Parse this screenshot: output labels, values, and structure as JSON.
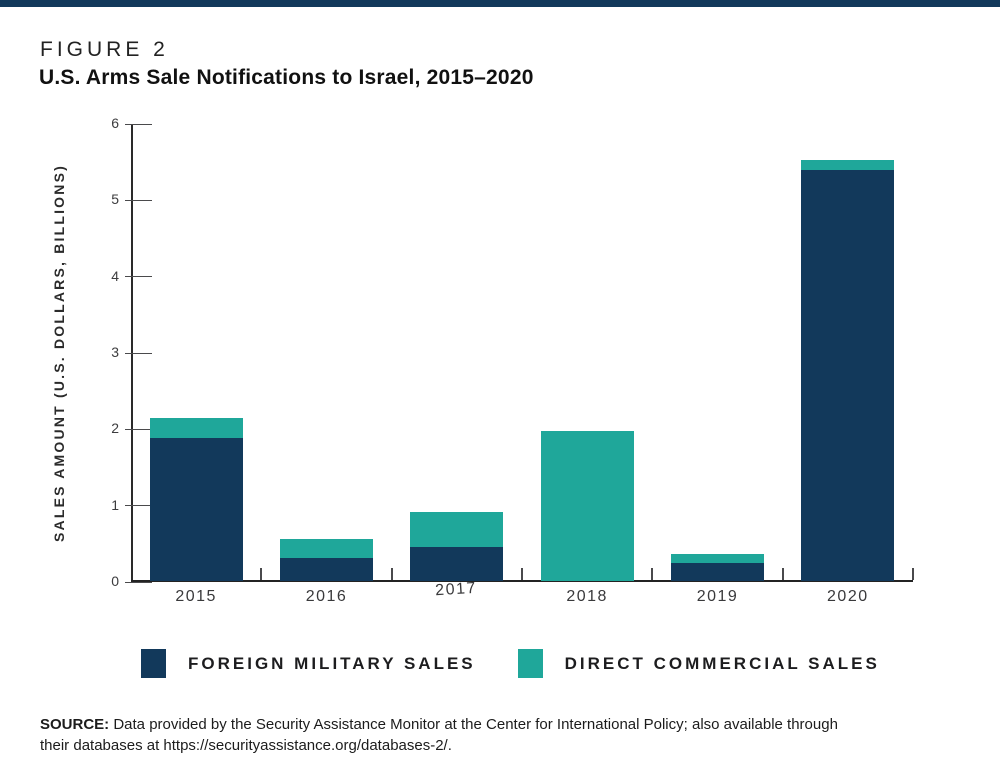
{
  "figure": {
    "label": "FIGURE 2",
    "title": "U.S. Arms Sale Notifications to Israel, 2015–2020"
  },
  "chart_data": {
    "type": "bar",
    "stacked": true,
    "title": "U.S. Arms Sale Notifications to Israel, 2015–2020",
    "categories": [
      "2015",
      "2016",
      "2017",
      "2018",
      "2019",
      "2020"
    ],
    "series": [
      {
        "name": "FOREIGN MILITARY SALES",
        "color": "#12395b",
        "values": [
          1.88,
          0.3,
          0.45,
          0.0,
          0.23,
          5.39
        ]
      },
      {
        "name": "DIRECT COMMERCIAL SALES",
        "color": "#1fa79a",
        "values": [
          0.25,
          0.25,
          0.45,
          1.97,
          0.13,
          0.13
        ]
      }
    ],
    "totals": [
      2.13,
      0.55,
      0.9,
      1.97,
      0.36,
      5.52
    ],
    "xlabel": "",
    "ylabel": "SALES AMOUNT (U.S. DOLLARS, BILLIONS)",
    "ylim": [
      0,
      6
    ],
    "y_ticks": [
      0,
      1,
      2,
      3,
      4,
      5,
      6
    ],
    "grid": false,
    "legend_position": "bottom"
  },
  "source": {
    "label": "SOURCE:",
    "lines": [
      "Data provided by the Security Assistance Monitor at the Center for International Policy; also available through",
      "their databases at https://securityassistance.org/databases-2/."
    ]
  },
  "colors": {
    "top_rule": "#12395b",
    "navy": "#12395b",
    "teal": "#1fa79a"
  }
}
